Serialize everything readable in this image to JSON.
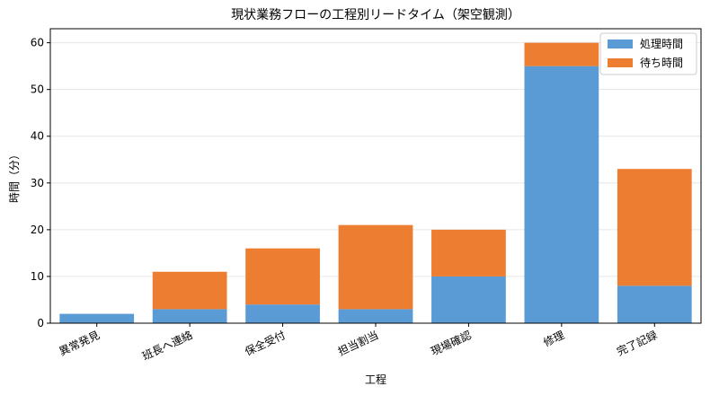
{
  "chart_data": {
    "type": "bar",
    "stacked": true,
    "title": "現状業務フローの工程別リードタイム（架空観測）",
    "xlabel": "工程",
    "ylabel": "時間（分）",
    "categories": [
      "異常発見",
      "班長へ連絡",
      "保全受付",
      "担当割当",
      "現場確認",
      "修理",
      "完了記録"
    ],
    "series": [
      {
        "name": "処理時間",
        "color": "#5b9bd5",
        "values": [
          2,
          3,
          4,
          3,
          10,
          55,
          8
        ]
      },
      {
        "name": "待ち時間",
        "color": "#ed7d31",
        "values": [
          0,
          8,
          12,
          18,
          10,
          5,
          25
        ]
      }
    ],
    "ylim": [
      0,
      63
    ],
    "yticks": [
      0,
      10,
      20,
      30,
      40,
      50,
      60
    ],
    "grid": "y",
    "legend_position": "top-right"
  }
}
